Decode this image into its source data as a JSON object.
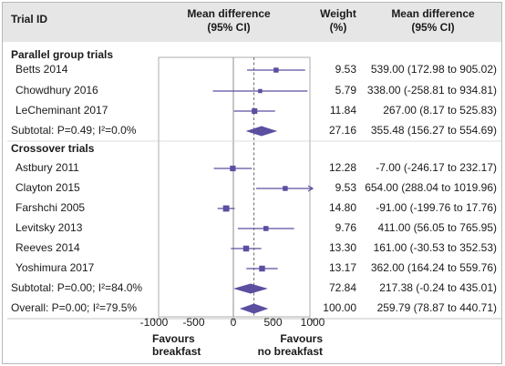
{
  "header": {
    "trial_id": "Trial ID",
    "md_line1": "Mean difference",
    "md_line2": "(95% CI)",
    "weight_line1": "Weight",
    "weight_line2": "(%)",
    "md2_line1": "Mean difference",
    "md2_line2": "(95% CI)"
  },
  "sections": {
    "parallel": "Parallel group trials",
    "crossover": "Crossover trials"
  },
  "colors": {
    "marker": "#5b4fa0",
    "header_bg": "#e6e6e6",
    "ref_line": "#9a9a9a"
  },
  "chart_data": {
    "type": "forest",
    "xlim": [
      -1000,
      1000
    ],
    "x_ticks": [
      "-1000",
      "-500",
      "0",
      "500",
      "1000"
    ],
    "x_tick_values": [
      -1000,
      -500,
      0,
      500,
      1000
    ],
    "overall_line": 259.79,
    "favours_left": "Favours breakfast",
    "favours_right": "Favours no breakfast",
    "favours_left_l1": "Favours",
    "favours_left_l2": "breakfast",
    "favours_right_l1": "Favours",
    "favours_right_l2": "no breakfast",
    "rows": [
      {
        "kind": "study",
        "label": "Betts 2014",
        "est": 539.0,
        "lo": 172.98,
        "hi": 905.02,
        "weight": "9.53",
        "ci": "539.00 (172.98 to 905.02)"
      },
      {
        "kind": "study",
        "label": "Chowdhury 2016",
        "est": 338.0,
        "lo": -258.81,
        "hi": 934.81,
        "weight": "5.79",
        "ci": "338.00 (-258.81 to 934.81)"
      },
      {
        "kind": "study",
        "label": "LeCheminant 2017",
        "est": 267.0,
        "lo": 8.17,
        "hi": 525.83,
        "weight": "11.84",
        "ci": "267.00 (8.17 to 525.83)"
      },
      {
        "kind": "subtotal",
        "label": "Subtotal: P=0.49; I²=0.0%",
        "est": 355.48,
        "lo": 156.27,
        "hi": 554.69,
        "weight": "27.16",
        "ci": "355.48 (156.27 to 554.69)"
      },
      {
        "kind": "study",
        "label": "Astbury 2011",
        "est": -7.0,
        "lo": -246.17,
        "hi": 232.17,
        "weight": "12.28",
        "ci": "-7.00 (-246.17 to 232.17)"
      },
      {
        "kind": "study",
        "label": "Clayton 2015",
        "est": 654.0,
        "lo": 288.04,
        "hi": 1019.96,
        "weight": "9.53",
        "ci": "654.00 (288.04 to 1019.96)"
      },
      {
        "kind": "study",
        "label": "Farshchi 2005",
        "est": -91.0,
        "lo": -199.76,
        "hi": 17.76,
        "weight": "14.80",
        "ci": "-91.00 (-199.76 to 17.76)"
      },
      {
        "kind": "study",
        "label": "Levitsky 2013",
        "est": 411.0,
        "lo": 56.05,
        "hi": 765.95,
        "weight": "9.76",
        "ci": "411.00 (56.05 to 765.95)"
      },
      {
        "kind": "study",
        "label": "Reeves 2014",
        "est": 161.0,
        "lo": -30.53,
        "hi": 352.53,
        "weight": "13.30",
        "ci": "161.00 (-30.53 to 352.53)"
      },
      {
        "kind": "study",
        "label": "Yoshimura 2017",
        "est": 362.0,
        "lo": 164.24,
        "hi": 559.76,
        "weight": "13.17",
        "ci": "362.00 (164.24 to 559.76)"
      },
      {
        "kind": "subtotal",
        "label": "Subtotal: P=0.00; I²=84.0%",
        "est": 217.38,
        "lo": -0.24,
        "hi": 435.01,
        "weight": "72.84",
        "ci": "217.38 (-0.24 to 435.01)"
      },
      {
        "kind": "overall",
        "label": "Overall: P=0.00; I²=79.5%",
        "est": 259.79,
        "lo": 78.87,
        "hi": 440.71,
        "weight": "100.00",
        "ci": "259.79 (78.87 to 440.71)"
      }
    ]
  }
}
